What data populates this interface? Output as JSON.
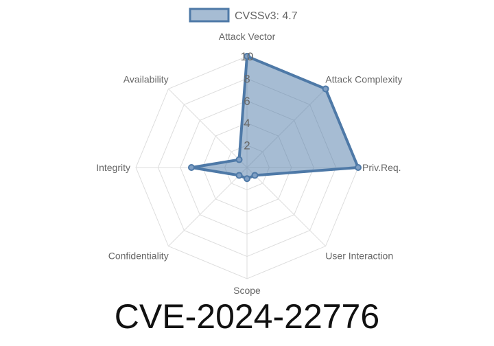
{
  "chart_data": {
    "type": "radar",
    "categories": [
      "Attack Vector",
      "Attack Complexity",
      "Priv.Req.",
      "User Interaction",
      "Scope",
      "Confidentiality",
      "Integrity",
      "Availability"
    ],
    "series": [
      {
        "name": "CVSSv3: 4.7",
        "values": [
          10,
          10,
          10,
          1,
          1,
          1,
          5,
          1
        ]
      }
    ],
    "rlim": [
      0,
      10
    ],
    "ticks": [
      "2",
      "4",
      "6",
      "8",
      "10"
    ],
    "grid": true,
    "legend": "top",
    "colors": {
      "line": "#4e79a7",
      "fill": "#4e79a7",
      "grid": "#dddddd"
    }
  },
  "title": "CVE-2024-22776"
}
